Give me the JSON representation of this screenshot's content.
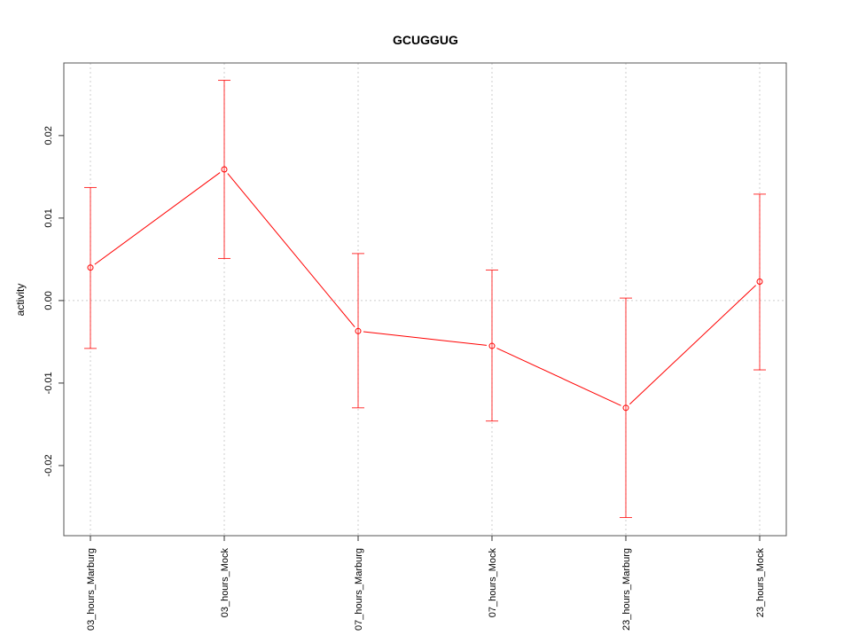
{
  "chart_data": {
    "type": "line",
    "title": "GCUGGUG",
    "xlabel": "",
    "ylabel": "activity",
    "categories": [
      "03_hours_Marburg",
      "03_hours_Mock",
      "07_hours_Marburg",
      "07_hours_Mock",
      "23_hours_Marburg",
      "23_hours_Mock"
    ],
    "series": [
      {
        "values": [
          0.004,
          0.0159,
          -0.0037,
          -0.0055,
          -0.013,
          0.0023
        ],
        "upper": [
          0.0137,
          0.0267,
          0.0057,
          0.0037,
          0.0003,
          0.0129
        ],
        "lower": [
          -0.0058,
          0.0051,
          -0.013,
          -0.0146,
          -0.0263,
          -0.0084
        ]
      }
    ],
    "yticks": [
      -0.02,
      -0.01,
      0.0,
      0.01,
      0.02
    ],
    "ytick_labels": [
      "-0.02",
      "-0.01",
      "0.00",
      "0.01",
      "0.02"
    ],
    "ylim": [
      -0.0285,
      0.0288
    ],
    "grid": "dotted, vertical at categories and horizontal at 0",
    "color": "#ff0000"
  }
}
